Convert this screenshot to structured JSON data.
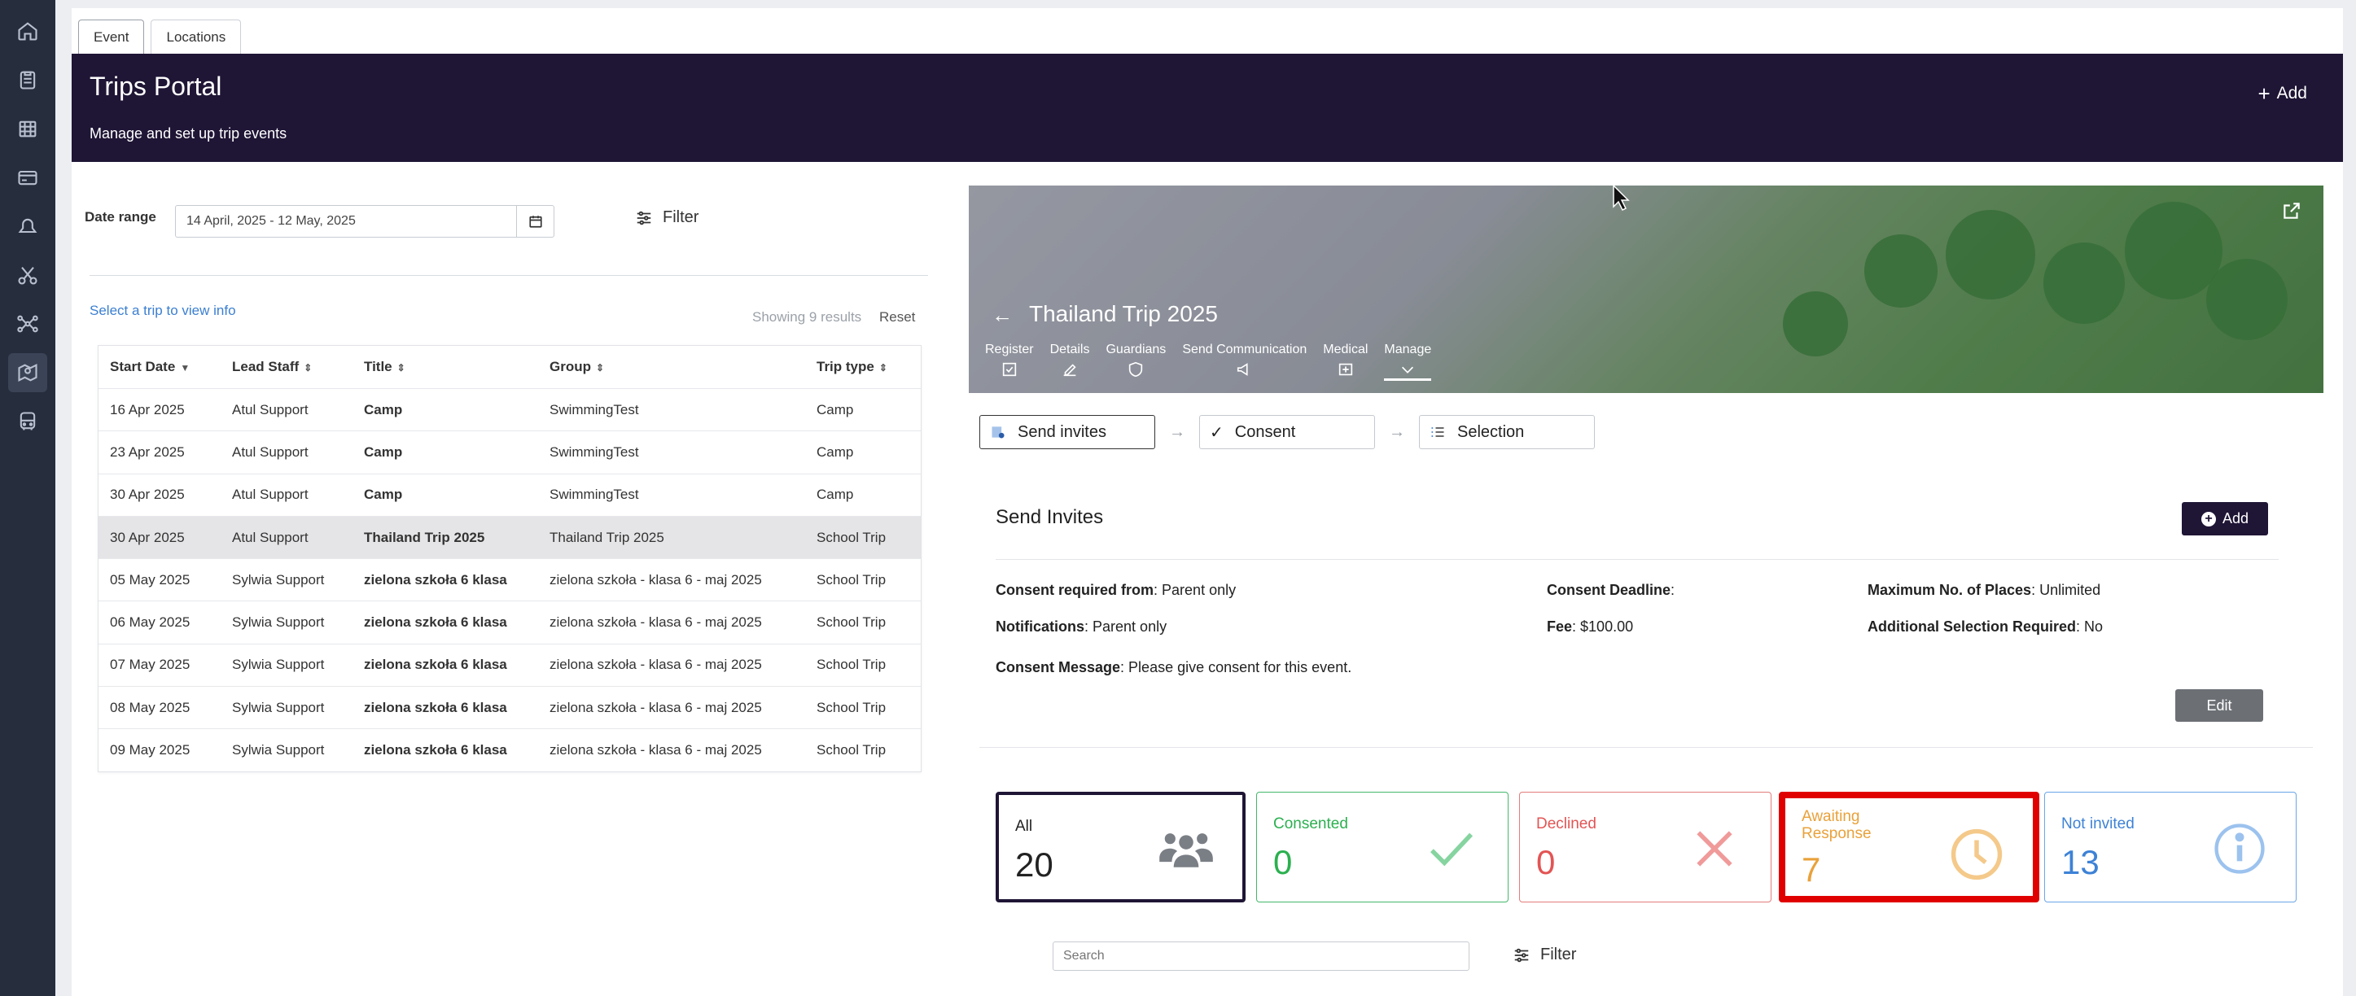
{
  "tabs": [
    "Event",
    "Locations"
  ],
  "banner": {
    "title": "Trips Portal",
    "subtitle": "Manage and set up trip events",
    "add_label": "Add"
  },
  "filters": {
    "date_range_label": "Date range",
    "date_range_value": "14 April, 2025 - 12 May, 2025",
    "filter_label": "Filter"
  },
  "list": {
    "select_hint": "Select a trip to view info",
    "showing": "Showing 9 results",
    "reset": "Reset",
    "columns": [
      "Start Date",
      "Lead Staff",
      "Title",
      "Group",
      "Trip type"
    ],
    "rows": [
      [
        "16 Apr 2025",
        "Atul Support",
        "Camp",
        "SwimmingTest",
        "Camp"
      ],
      [
        "23 Apr 2025",
        "Atul Support",
        "Camp",
        "SwimmingTest",
        "Camp"
      ],
      [
        "30 Apr 2025",
        "Atul Support",
        "Camp",
        "SwimmingTest",
        "Camp"
      ],
      [
        "30 Apr 2025",
        "Atul Support",
        "Thailand Trip 2025",
        "Thailand Trip 2025",
        "School Trip"
      ],
      [
        "05 May 2025",
        "Sylwia Support",
        "zielona szkoła 6 klasa",
        "zielona szkoła - klasa 6 - maj 2025",
        "School Trip"
      ],
      [
        "06 May 2025",
        "Sylwia Support",
        "zielona szkoła 6 klasa",
        "zielona szkoła - klasa 6 - maj 2025",
        "School Trip"
      ],
      [
        "07 May 2025",
        "Sylwia Support",
        "zielona szkoła 6 klasa",
        "zielona szkoła - klasa 6 - maj 2025",
        "School Trip"
      ],
      [
        "08 May 2025",
        "Sylwia Support",
        "zielona szkoła 6 klasa",
        "zielona szkoła - klasa 6 - maj 2025",
        "School Trip"
      ],
      [
        "09 May 2025",
        "Sylwia Support",
        "zielona szkoła 6 klasa",
        "zielona szkoła - klasa 6 - maj 2025",
        "School Trip"
      ]
    ]
  },
  "trip": {
    "title": "Thailand Trip 2025",
    "nav": [
      "Register",
      "Details",
      "Guardians",
      "Send Communication",
      "Medical",
      "Manage"
    ]
  },
  "steps": [
    "Send invites",
    "Consent",
    "Selection"
  ],
  "send_invites": {
    "title": "Send Invites",
    "add_label": "Add",
    "edit_label": "Edit",
    "consent_required_label": "Consent required from",
    "consent_required_value": ": Parent only",
    "notifications_label": "Notifications",
    "notifications_value": ": Parent only",
    "consent_message_label": "Consent Message",
    "consent_message_value": ": Please give consent for this event.",
    "deadline_label": "Consent Deadline",
    "deadline_value": ":",
    "fee_label": "Fee",
    "fee_value": ": $100.00",
    "max_places_label": "Maximum No. of Places",
    "max_places_value": ": Unlimited",
    "additional_label": "Additional Selection Required",
    "additional_value": ": No"
  },
  "stats": {
    "all": {
      "label": "All",
      "value": "20"
    },
    "consented": {
      "label": "Consented",
      "value": "0"
    },
    "declined": {
      "label": "Declined",
      "value": "0"
    },
    "awaiting": {
      "label": "Awaiting Response",
      "value": "7"
    },
    "not_invited": {
      "label": "Not invited",
      "value": "13"
    }
  },
  "search": {
    "placeholder": "Search",
    "filter_label": "Filter"
  },
  "colors": {
    "brand": "#1f1535",
    "sidebar": "#262d3d",
    "highlight": "#e00000"
  }
}
